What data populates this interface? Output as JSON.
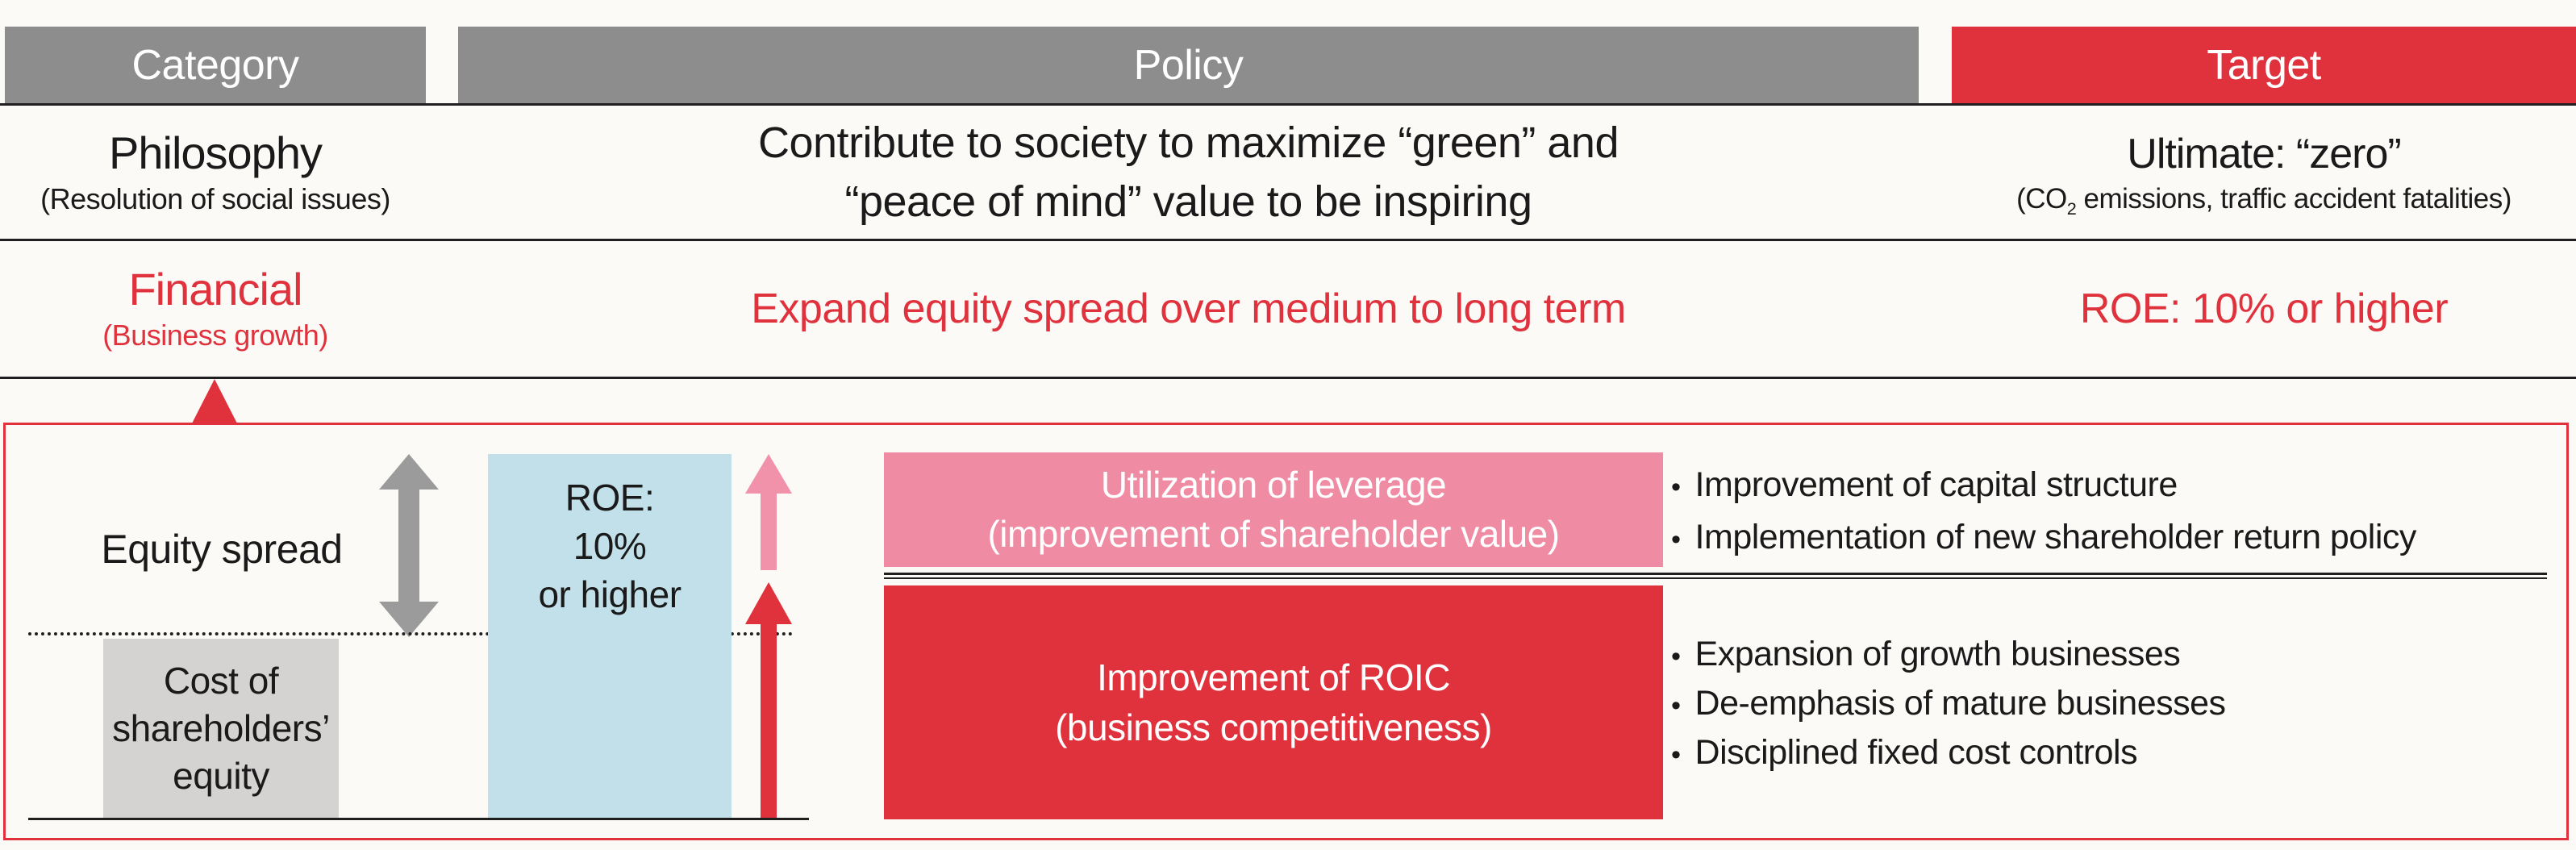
{
  "colors": {
    "bg": "#fbfaf7",
    "ink": "#1a1a1a",
    "line": "#1f1f1f",
    "gray_bar": "#8d8d8d",
    "red": "#e0323d",
    "pink": "#ef8ba3",
    "pink_arrow": "#f192aa",
    "blue": "#c2e0e9",
    "gray_box": "#d5d3d1",
    "gray_arrow": "#9c9b9b"
  },
  "header": {
    "category_label": "Category",
    "policy_label": "Policy",
    "target_label": "Target"
  },
  "philosophy_row": {
    "category_title": "Philosophy",
    "category_sub": "(Resolution of social issues)",
    "policy_line1": "Contribute to society to maximize “green” and",
    "policy_line2": "“peace of mind” value to be inspiring",
    "target_title": "Ultimate: “zero”",
    "target_sub_pre": "(CO",
    "target_sub_subscript": "2",
    "target_sub_post": " emissions, traffic accident fatalities)"
  },
  "financial_row": {
    "category_title": "Financial",
    "category_sub": "(Business growth)",
    "policy_text": "Expand equity spread over medium to long term",
    "target_text": "ROE: 10% or higher"
  },
  "diagram": {
    "bullet_char": "•",
    "equity_spread_label": "Equity spread",
    "cost_box_lines": [
      "Cost of",
      "shareholders’",
      "equity"
    ],
    "roe_box_lines": [
      "ROE:",
      "10%",
      "or higher"
    ],
    "leverage_box_title": "Utilization of leverage",
    "leverage_box_sub": "(improvement of shareholder value)",
    "leverage_bullets": [
      "Improvement of capital structure",
      "Implementation of new shareholder return policy"
    ],
    "roic_box_title": "Improvement of ROIC",
    "roic_box_sub": "(business competitiveness)",
    "roic_bullets": [
      "Expansion of growth businesses",
      "De-emphasis of mature businesses",
      "Disciplined fixed cost controls"
    ]
  }
}
